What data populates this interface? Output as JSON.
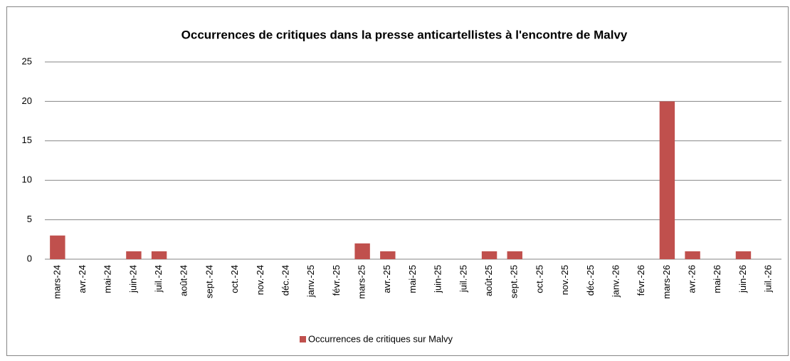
{
  "chart_data": {
    "type": "bar",
    "title": "Occurrences de critiques dans la presse anticartellistes à l'encontre de Malvy",
    "categories": [
      "mars-24",
      "avr.-24",
      "mai-24",
      "juin-24",
      "juil.-24",
      "août-24",
      "sept.-24",
      "oct.-24",
      "nov.-24",
      "déc.-24",
      "janv.-25",
      "févr.-25",
      "mars-25",
      "avr.-25",
      "mai-25",
      "juin-25",
      "juil.-25",
      "août-25",
      "sept.-25",
      "oct.-25",
      "nov.-25",
      "déc.-25",
      "janv.-26",
      "févr.-26",
      "mars-26",
      "avr.-26",
      "mai-26",
      "juin-26",
      "juil.-26"
    ],
    "series": [
      {
        "name": "Occurrences de critiques sur Malvy",
        "color": "#c0504d",
        "values": [
          3,
          0,
          0,
          1,
          1,
          0,
          0,
          0,
          0,
          0,
          0,
          0,
          2,
          1,
          0,
          0,
          0,
          1,
          1,
          0,
          0,
          0,
          0,
          0,
          20,
          1,
          0,
          1,
          0
        ]
      }
    ],
    "ylim": [
      0,
      25
    ],
    "yticks": [
      0,
      5,
      10,
      15,
      20,
      25
    ],
    "grid": true,
    "legend": "bottom"
  }
}
